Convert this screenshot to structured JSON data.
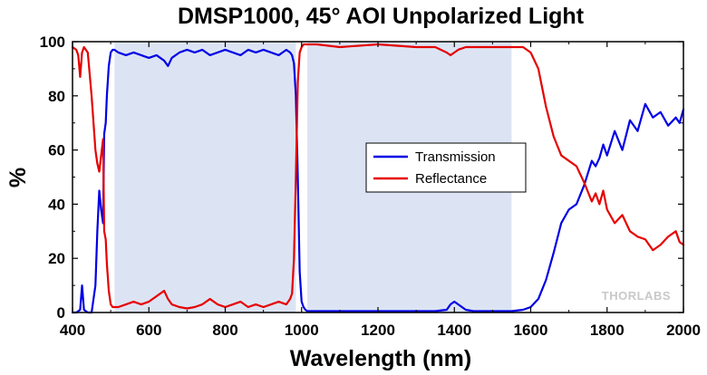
{
  "chart_data": {
    "type": "line",
    "title": "DMSP1000, 45° AOI Unpolarized Light",
    "xlabel": "Wavelength (nm)",
    "ylabel": "%",
    "xlim": [
      400,
      2000
    ],
    "ylim": [
      0,
      100
    ],
    "xticks": [
      400,
      600,
      800,
      1000,
      1200,
      1400,
      1600,
      1800,
      2000
    ],
    "yticks": [
      0,
      20,
      40,
      60,
      80,
      100
    ],
    "grid": false,
    "legend_position": "center-right",
    "highlight_bands": [
      {
        "x_start": 510,
        "x_end": 985,
        "color": "#dce4f4"
      },
      {
        "x_start": 1015,
        "x_end": 1550,
        "color": "#dce4f4"
      }
    ],
    "watermark": "THORLABS",
    "series": [
      {
        "name": "Transmission",
        "color": "#0000e6",
        "x": [
          400,
          410,
          420,
          425,
          430,
          440,
          450,
          460,
          465,
          470,
          475,
          480,
          483,
          487,
          490,
          495,
          500,
          505,
          510,
          520,
          540,
          560,
          580,
          600,
          620,
          640,
          650,
          660,
          680,
          700,
          720,
          740,
          760,
          780,
          800,
          820,
          840,
          860,
          880,
          900,
          920,
          940,
          960,
          970,
          975,
          980,
          985,
          990,
          995,
          1000,
          1005,
          1010,
          1015,
          1020,
          1030,
          1040,
          1100,
          1200,
          1300,
          1350,
          1380,
          1390,
          1400,
          1410,
          1430,
          1450,
          1500,
          1550,
          1580,
          1600,
          1620,
          1640,
          1660,
          1680,
          1700,
          1720,
          1740,
          1760,
          1770,
          1780,
          1790,
          1800,
          1820,
          1840,
          1860,
          1880,
          1900,
          1920,
          1940,
          1960,
          1980,
          1990,
          2000
        ],
        "values": [
          0,
          0,
          1,
          10,
          1,
          0,
          0,
          10,
          30,
          45,
          38,
          33,
          66,
          70,
          80,
          91,
          96,
          97,
          97,
          96,
          95,
          96,
          95,
          94,
          95,
          93,
          91,
          94,
          96,
          97,
          96,
          97,
          95,
          96,
          97,
          96,
          95,
          97,
          96,
          97,
          96,
          95,
          97,
          96,
          95,
          92,
          80,
          50,
          15,
          4,
          2,
          1,
          0.5,
          0.5,
          0.5,
          0.5,
          0.5,
          0.5,
          0.5,
          0.5,
          1,
          3,
          4,
          3,
          1,
          0.5,
          0.5,
          0.5,
          1,
          2,
          5,
          12,
          22,
          33,
          38,
          40,
          47,
          56,
          54,
          57,
          62,
          58,
          67,
          60,
          71,
          67,
          77,
          72,
          74,
          69,
          72,
          70,
          75
        ]
      },
      {
        "name": "Reflectance",
        "color": "#e60000",
        "x": [
          400,
          410,
          415,
          420,
          425,
          430,
          440,
          450,
          460,
          465,
          470,
          475,
          480,
          483,
          487,
          490,
          495,
          500,
          505,
          510,
          520,
          540,
          560,
          580,
          600,
          620,
          640,
          650,
          660,
          680,
          700,
          720,
          740,
          760,
          780,
          800,
          820,
          840,
          860,
          880,
          900,
          920,
          940,
          960,
          970,
          975,
          980,
          985,
          990,
          995,
          1000,
          1005,
          1010,
          1015,
          1020,
          1030,
          1040,
          1100,
          1200,
          1300,
          1350,
          1380,
          1390,
          1400,
          1410,
          1430,
          1450,
          1500,
          1550,
          1580,
          1600,
          1620,
          1640,
          1660,
          1680,
          1700,
          1720,
          1740,
          1760,
          1770,
          1780,
          1790,
          1800,
          1820,
          1840,
          1860,
          1880,
          1900,
          1920,
          1940,
          1960,
          1980,
          1990,
          2000
        ],
        "values": [
          98,
          97,
          95,
          87,
          96,
          98,
          96,
          80,
          60,
          55,
          52,
          58,
          64,
          30,
          27,
          18,
          8,
          3,
          2,
          2,
          2,
          3,
          4,
          3,
          4,
          6,
          8,
          5,
          3,
          2,
          1.5,
          2,
          3,
          5,
          3,
          2,
          3,
          4,
          2,
          3,
          2,
          3,
          4,
          3,
          5,
          7,
          20,
          50,
          85,
          96,
          98,
          99,
          99,
          99,
          99,
          99,
          99,
          98,
          99,
          98,
          98,
          96,
          95,
          96,
          97,
          98,
          98,
          98,
          98,
          98,
          96,
          90,
          76,
          65,
          58,
          56,
          54,
          48,
          41,
          44,
          40,
          45,
          38,
          33,
          36,
          30,
          28,
          27,
          23,
          25,
          28,
          30,
          26,
          25
        ]
      }
    ]
  }
}
